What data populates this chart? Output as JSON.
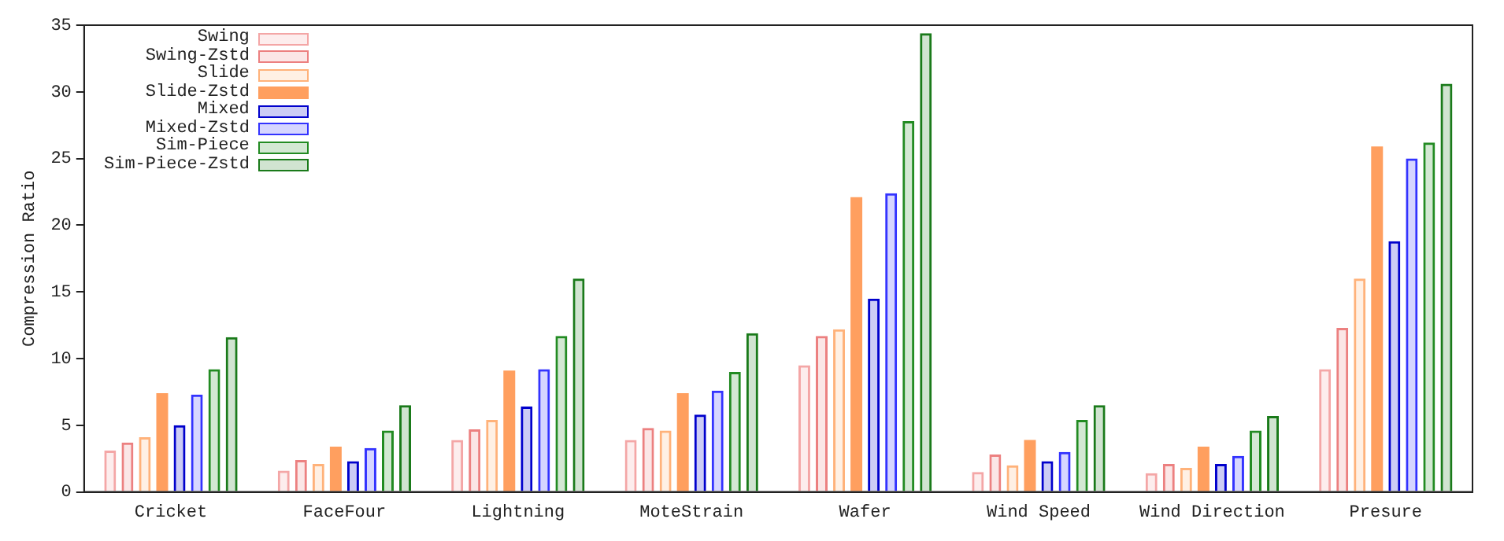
{
  "chart_data": {
    "type": "bar",
    "ylabel": "Compression Ratio",
    "categories": [
      "Cricket",
      "FaceFour",
      "Lightning",
      "MoteStrain",
      "Wafer",
      "Wind Speed",
      "Wind Direction",
      "Presure"
    ],
    "series": [
      {
        "name": "Swing",
        "color": "#f4a6a6",
        "values": [
          3.1,
          1.6,
          3.9,
          3.9,
          9.5,
          1.5,
          1.4,
          9.2
        ]
      },
      {
        "name": "Swing-Zstd",
        "color": "#ec8080",
        "values": [
          3.7,
          2.4,
          4.7,
          4.8,
          11.7,
          2.8,
          2.1,
          12.3
        ]
      },
      {
        "name": "Slide",
        "color": "#ffb27a",
        "values": [
          4.1,
          2.1,
          5.4,
          4.6,
          12.2,
          2.0,
          1.8,
          16.0
        ]
      },
      {
        "name": "Slide-Zstd",
        "color": "#ff9f5f",
        "values": [
          7.4,
          3.4,
          9.1,
          7.4,
          22.1,
          3.9,
          3.4,
          25.9
        ]
      },
      {
        "name": "Mixed",
        "color": "#0000cc",
        "values": [
          5.0,
          2.3,
          6.4,
          5.8,
          14.5,
          2.3,
          2.1,
          18.8
        ]
      },
      {
        "name": "Mixed-Zstd",
        "color": "#3333ff",
        "values": [
          7.3,
          3.3,
          9.2,
          7.6,
          22.4,
          3.0,
          2.7,
          25.0
        ]
      },
      {
        "name": "Sim-Piece",
        "color": "#228b22",
        "values": [
          9.2,
          4.6,
          11.7,
          9.0,
          27.8,
          5.4,
          4.6,
          26.2
        ]
      },
      {
        "name": "Sim-Piece-Zstd",
        "color": "#1a7a1a",
        "values": [
          11.6,
          6.5,
          16.0,
          11.9,
          34.4,
          6.5,
          5.7,
          30.6
        ]
      }
    ],
    "ylim": [
      0,
      35
    ],
    "yticks": [
      0,
      5,
      10,
      15,
      20,
      25,
      30,
      35
    ],
    "grid": false,
    "legend": "top left"
  }
}
